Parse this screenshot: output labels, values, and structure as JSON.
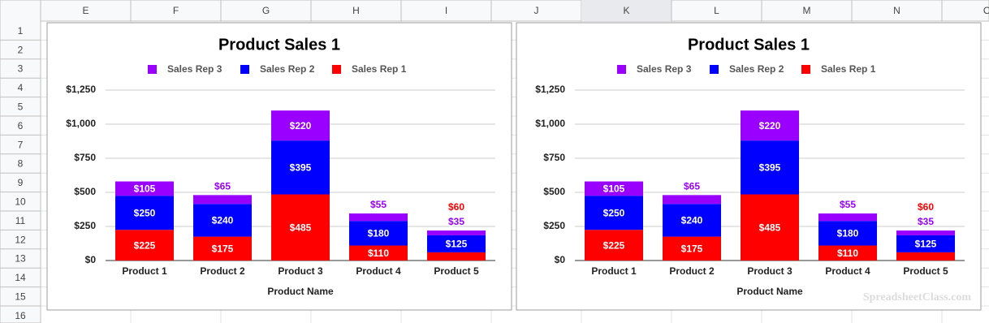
{
  "columns": [
    "E",
    "F",
    "G",
    "H",
    "I",
    "J",
    "K",
    "L",
    "M",
    "N",
    "O"
  ],
  "rows": [
    "1",
    "2",
    "3",
    "4",
    "5",
    "6",
    "7",
    "8",
    "9",
    "10",
    "11",
    "12",
    "13",
    "14",
    "15",
    "16"
  ],
  "watermark": "SpreadsheetClass.com",
  "chart_data": [
    {
      "type": "stacked-bar",
      "title": "Product Sales 1",
      "x_label": "Product Name",
      "categories": [
        "Product 1",
        "Product 2",
        "Product 3",
        "Product 4",
        "Product 5"
      ],
      "series": [
        {
          "name": "Sales Rep 1",
          "color": "#ff0000",
          "values": [
            225,
            175,
            485,
            110,
            60
          ],
          "value_labels": [
            "$225",
            "$175",
            "$485",
            "$110",
            "$60"
          ]
        },
        {
          "name": "Sales Rep 2",
          "color": "#0000ff",
          "values": [
            250,
            240,
            395,
            180,
            125
          ],
          "value_labels": [
            "$250",
            "$240",
            "$395",
            "$180",
            "$125"
          ]
        },
        {
          "name": "Sales Rep 3",
          "color": "#9900ff",
          "values": [
            105,
            65,
            220,
            55,
            35
          ],
          "value_labels": [
            "$105",
            "$65",
            "$220",
            "$55",
            "$35"
          ]
        }
      ],
      "ylim": [
        0,
        1250
      ],
      "yticks": [
        {
          "value": 0,
          "label": "$0"
        },
        {
          "value": 250,
          "label": "$250"
        },
        {
          "value": 500,
          "label": "$500"
        },
        {
          "value": 750,
          "label": "$750"
        },
        {
          "value": 1000,
          "label": "$1,000"
        },
        {
          "value": 1250,
          "label": "$1,250"
        }
      ],
      "grid": true,
      "legend": "top"
    },
    {
      "type": "stacked-bar",
      "title": "Product Sales 1",
      "x_label": "Product Name",
      "categories": [
        "Product 1",
        "Product 2",
        "Product 3",
        "Product 4",
        "Product 5"
      ],
      "series": [
        {
          "name": "Sales Rep 1",
          "color": "#ff0000",
          "values": [
            225,
            175,
            485,
            110,
            60
          ],
          "value_labels": [
            "$225",
            "$175",
            "$485",
            "$110",
            "$60"
          ]
        },
        {
          "name": "Sales Rep 2",
          "color": "#0000ff",
          "values": [
            250,
            240,
            395,
            180,
            125
          ],
          "value_labels": [
            "$250",
            "$240",
            "$395",
            "$180",
            "$125"
          ]
        },
        {
          "name": "Sales Rep 3",
          "color": "#9900ff",
          "values": [
            105,
            65,
            220,
            55,
            35
          ],
          "value_labels": [
            "$105",
            "$65",
            "$220",
            "$55",
            "$35"
          ]
        }
      ],
      "ylim": [
        0,
        1250
      ],
      "yticks": [
        {
          "value": 0,
          "label": "$0"
        },
        {
          "value": 250,
          "label": "$250"
        },
        {
          "value": 500,
          "label": "$500"
        },
        {
          "value": 750,
          "label": "$750"
        },
        {
          "value": 1000,
          "label": "$1,000"
        },
        {
          "value": 1250,
          "label": "$1,250"
        }
      ],
      "grid": true,
      "legend": "top"
    }
  ]
}
